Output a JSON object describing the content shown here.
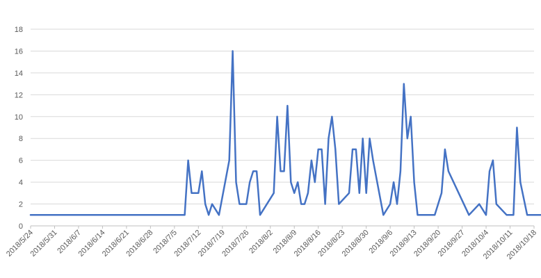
{
  "chart_data": {
    "type": "line",
    "title": "",
    "xlabel": "",
    "ylabel": "",
    "ylim": [
      0,
      18
    ],
    "y_ticks": [
      0,
      2,
      4,
      6,
      8,
      10,
      12,
      14,
      16,
      18
    ],
    "grid": true,
    "legend": "none",
    "x_tick_labels": [
      "2018/5/24",
      "2018/5/31",
      "2018/6/7",
      "2018/6/14",
      "2018/6/21",
      "2018/6/28",
      "2018/7/5",
      "2018/7/12",
      "2018/7/19",
      "2018/7/26",
      "2018/8/2",
      "2018/8/9",
      "2018/8/16",
      "2018/8/23",
      "2018/8/30",
      "2018/9/6",
      "2018/9/13",
      "2018/9/20",
      "2018/9/27",
      "2018/10/4",
      "2018/10/11",
      "2018/10/18"
    ],
    "series": [
      {
        "color": "#4472c4",
        "points": [
          [
            "2018/5/24",
            1
          ],
          [
            "2018/7/8",
            1
          ],
          [
            "2018/7/9",
            6
          ],
          [
            "2018/7/10",
            3
          ],
          [
            "2018/7/11",
            3
          ],
          [
            "2018/7/12",
            3
          ],
          [
            "2018/7/13",
            5
          ],
          [
            "2018/7/14",
            2
          ],
          [
            "2018/7/15",
            1
          ],
          [
            "2018/7/16",
            2
          ],
          [
            "2018/7/18",
            1
          ],
          [
            "2018/7/21",
            6
          ],
          [
            "2018/7/22",
            16
          ],
          [
            "2018/7/23",
            4
          ],
          [
            "2018/7/24",
            2
          ],
          [
            "2018/7/26",
            2
          ],
          [
            "2018/7/27",
            4
          ],
          [
            "2018/7/28",
            5
          ],
          [
            "2018/7/29",
            5
          ],
          [
            "2018/7/30",
            1
          ],
          [
            "2018/8/3",
            3
          ],
          [
            "2018/8/4",
            10
          ],
          [
            "2018/8/5",
            5
          ],
          [
            "2018/8/6",
            5
          ],
          [
            "2018/8/7",
            11
          ],
          [
            "2018/8/8",
            4
          ],
          [
            "2018/8/9",
            3
          ],
          [
            "2018/8/10",
            4
          ],
          [
            "2018/8/11",
            2
          ],
          [
            "2018/8/12",
            2
          ],
          [
            "2018/8/13",
            3
          ],
          [
            "2018/8/14",
            6
          ],
          [
            "2018/8/15",
            4
          ],
          [
            "2018/8/16",
            7
          ],
          [
            "2018/8/17",
            7
          ],
          [
            "2018/8/18",
            2
          ],
          [
            "2018/8/19",
            8
          ],
          [
            "2018/8/20",
            10
          ],
          [
            "2018/8/21",
            7
          ],
          [
            "2018/8/22",
            2
          ],
          [
            "2018/8/25",
            3
          ],
          [
            "2018/8/26",
            7
          ],
          [
            "2018/8/27",
            7
          ],
          [
            "2018/8/28",
            3
          ],
          [
            "2018/8/29",
            8
          ],
          [
            "2018/8/30",
            3
          ],
          [
            "2018/8/31",
            8
          ],
          [
            "2018/9/1",
            6
          ],
          [
            "2018/9/4",
            1
          ],
          [
            "2018/9/6",
            2
          ],
          [
            "2018/9/7",
            4
          ],
          [
            "2018/9/8",
            2
          ],
          [
            "2018/9/9",
            5
          ],
          [
            "2018/9/10",
            13
          ],
          [
            "2018/9/11",
            8
          ],
          [
            "2018/9/12",
            10
          ],
          [
            "2018/9/13",
            4
          ],
          [
            "2018/9/14",
            1
          ],
          [
            "2018/9/19",
            1
          ],
          [
            "2018/9/21",
            3
          ],
          [
            "2018/9/22",
            7
          ],
          [
            "2018/9/23",
            5
          ],
          [
            "2018/9/29",
            1
          ],
          [
            "2018/10/2",
            2
          ],
          [
            "2018/10/4",
            1
          ],
          [
            "2018/10/5",
            5
          ],
          [
            "2018/10/6",
            6
          ],
          [
            "2018/10/7",
            2
          ],
          [
            "2018/10/10",
            1
          ],
          [
            "2018/10/12",
            1
          ],
          [
            "2018/10/13",
            9
          ],
          [
            "2018/10/14",
            4
          ],
          [
            "2018/10/16",
            1
          ],
          [
            "2018/10/22",
            1
          ]
        ]
      }
    ]
  }
}
